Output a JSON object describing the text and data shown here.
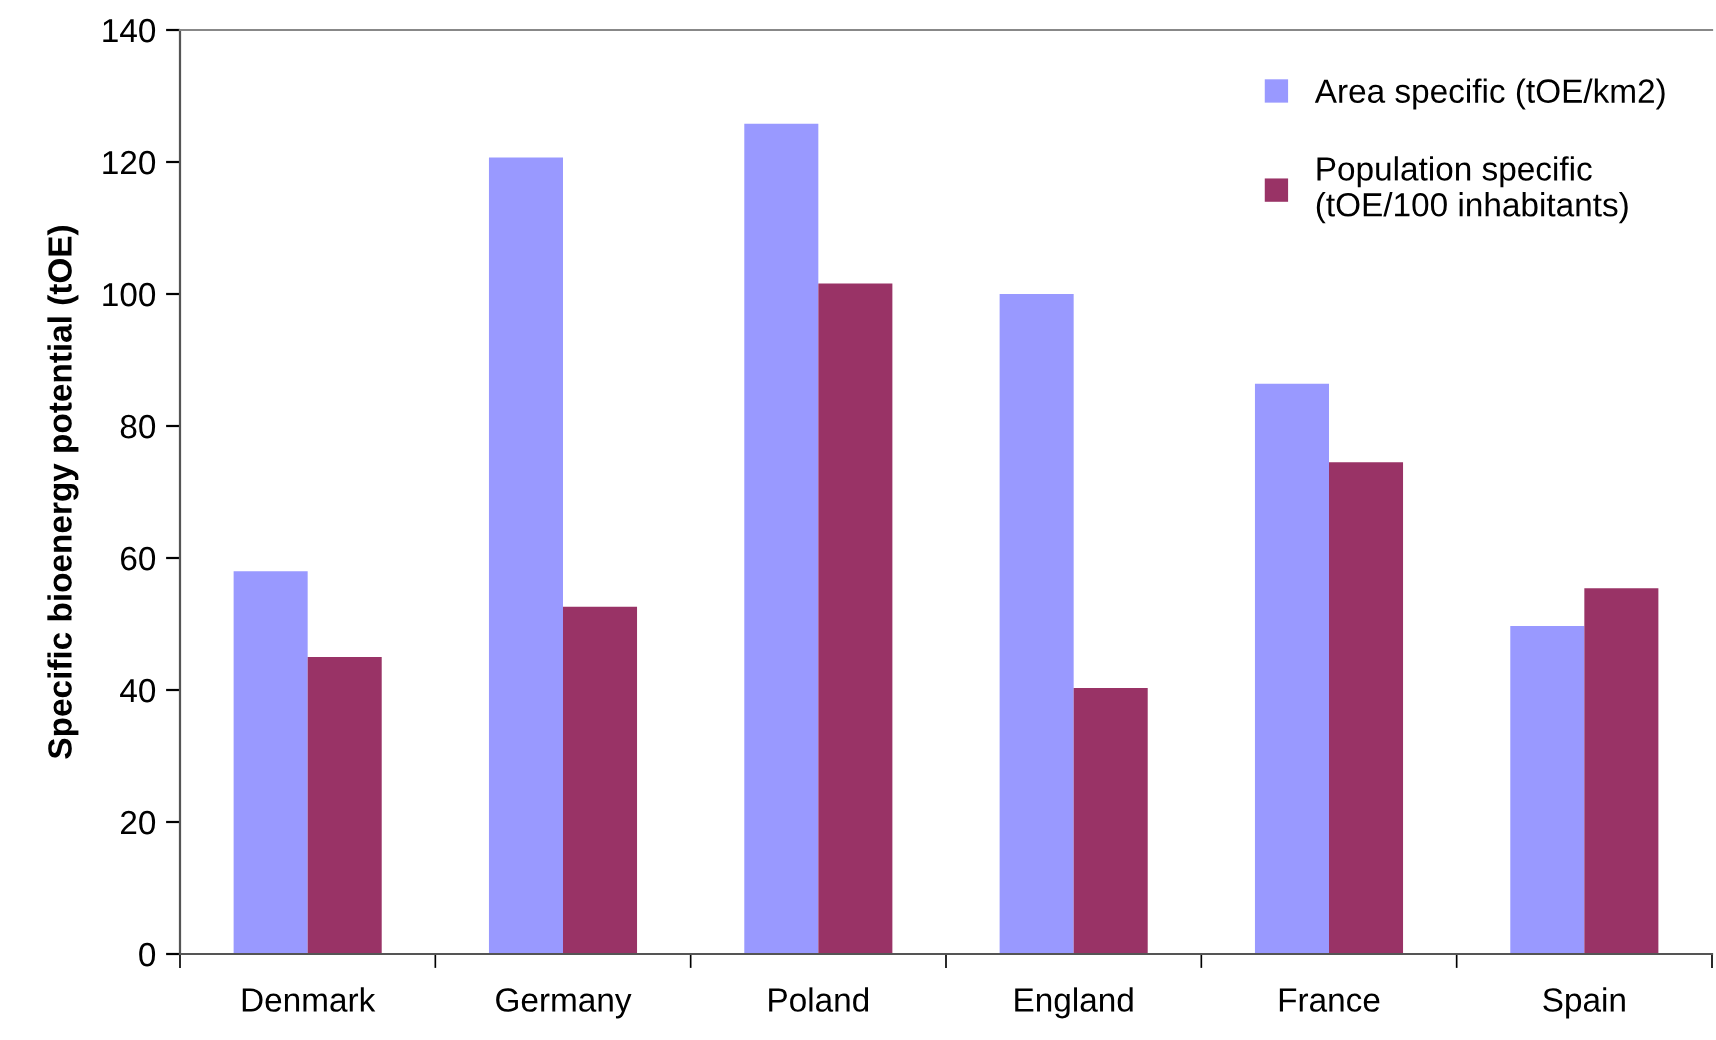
{
  "chart_data": {
    "type": "bar",
    "ylabel": "Specific bioenergy potential (tOE)",
    "categories": [
      "Denmark",
      "Germany",
      "Poland",
      "England",
      "France",
      "Spain"
    ],
    "series": [
      {
        "name": "Area specific (tOE/km2)",
        "color": "#9999ff",
        "values": [
          58,
          120.7,
          125.8,
          100,
          86.4,
          49.7
        ]
      },
      {
        "name": "Population specific\n(tOE/100 inhabitants)",
        "color": "#993366",
        "values": [
          45,
          52.6,
          101.6,
          40.3,
          74.5,
          55.4
        ]
      }
    ],
    "ylim": [
      0,
      140
    ],
    "yticks": [
      0,
      20,
      40,
      60,
      80,
      100,
      120,
      140
    ],
    "grid": false,
    "legend": "top right"
  }
}
